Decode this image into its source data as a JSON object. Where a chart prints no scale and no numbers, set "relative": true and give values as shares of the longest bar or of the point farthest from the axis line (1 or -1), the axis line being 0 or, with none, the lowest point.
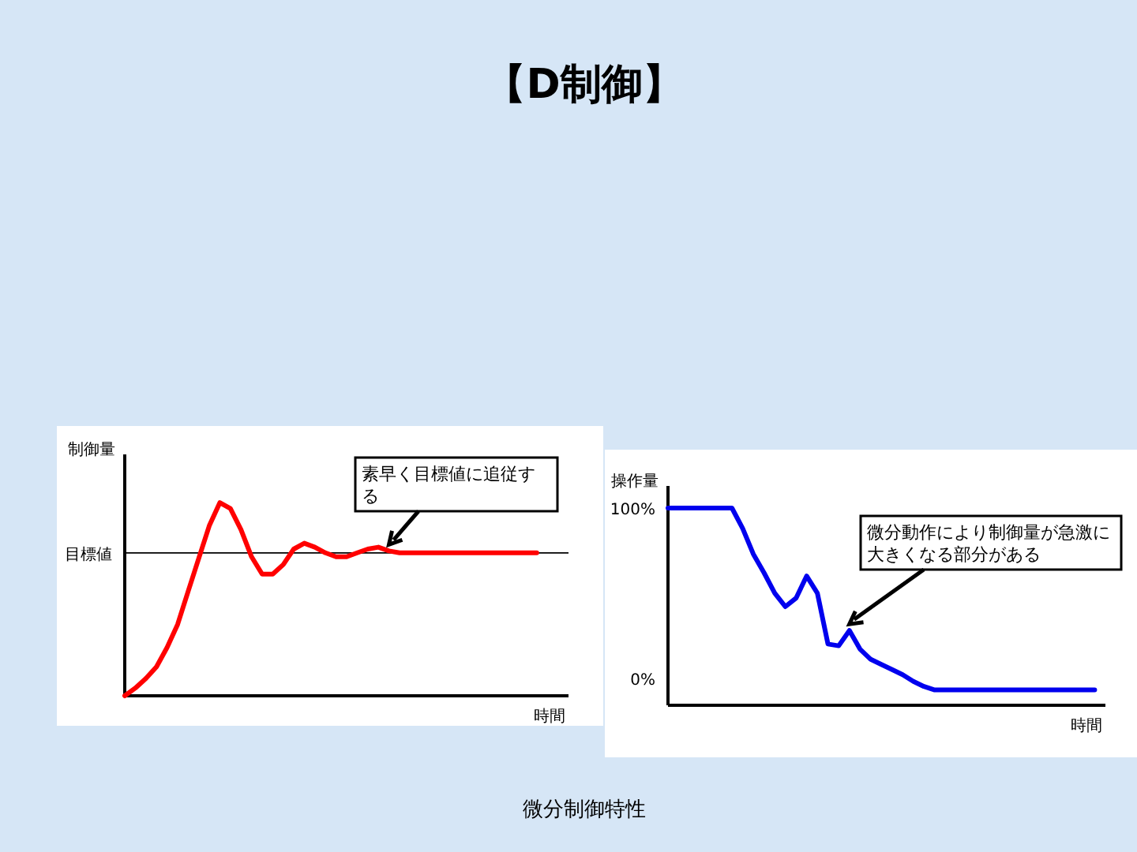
{
  "chart_data": [
    {
      "type": "line",
      "title": "【D制御】",
      "xlabel": "時間",
      "ylabel": "制御量",
      "relative": true,
      "color": "#ff0000",
      "categories": [
        null,
        null,
        null,
        null,
        null,
        null,
        null,
        null,
        null,
        null,
        null,
        null,
        null,
        null,
        null,
        null,
        null,
        null,
        null,
        null,
        null,
        null,
        null,
        null,
        null,
        null,
        null,
        null,
        null,
        null,
        null,
        null,
        null,
        null,
        null,
        null,
        null,
        null,
        null,
        null
      ],
      "values": [
        0,
        0.04,
        0.09,
        0.15,
        0.25,
        0.37,
        0.54,
        0.71,
        0.88,
        1.0,
        0.97,
        0.86,
        0.72,
        0.63,
        0.63,
        0.68,
        0.76,
        0.79,
        0.77,
        0.74,
        0.72,
        0.72,
        0.74,
        0.76,
        0.77,
        0.75,
        0.74,
        0.74,
        0.74,
        0.74,
        0.74,
        0.74,
        0.74,
        0.74,
        0.74,
        0.74,
        0.74,
        0.74,
        0.74,
        0.74
      ],
      "ref_lines": [
        {
          "axis": "y",
          "value": 0.74,
          "label": "目標値"
        }
      ],
      "annotations": [
        "素早く目標値に追従する"
      ]
    },
    {
      "type": "line",
      "xlabel": "時間",
      "ylabel": "操作量",
      "color": "#0000ee",
      "ylim": [
        -16,
        113
      ],
      "yticks": [
        {
          "value": 100,
          "label": "100%"
        },
        {
          "value": 0,
          "label": "0%"
        }
      ],
      "categories": [
        null,
        null,
        null,
        null,
        null,
        null,
        null,
        null,
        null,
        null,
        null,
        null,
        null,
        null,
        null,
        null,
        null,
        null,
        null,
        null,
        null,
        null,
        null,
        null,
        null,
        null,
        null,
        null,
        null,
        null,
        null,
        null,
        null,
        null,
        null,
        null,
        null,
        null,
        null,
        null,
        null
      ],
      "values": [
        100,
        100,
        100,
        100,
        100,
        100,
        100,
        88,
        73,
        62,
        50,
        42,
        47,
        60,
        50,
        20,
        19,
        28,
        17,
        11,
        8,
        5,
        2,
        -2,
        -5,
        -7,
        -7,
        -7,
        -7,
        -7,
        -7,
        -7,
        -7,
        -7,
        -7,
        -7,
        -7,
        -7,
        -7,
        -7,
        -7
      ],
      "annotations": [
        "微分動作により制御量が急激に大きくなる部分がある",
        "微分制御特性"
      ]
    }
  ]
}
